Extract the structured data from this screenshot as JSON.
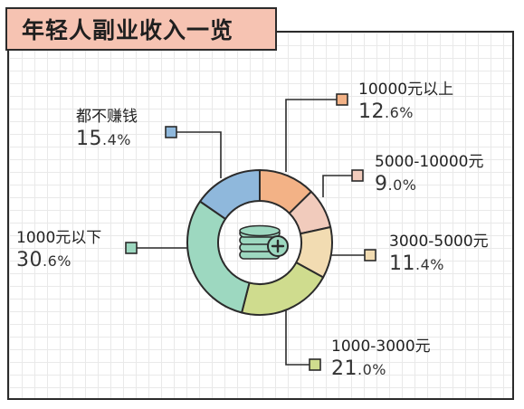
{
  "title": "年轻人副业收入一览",
  "chart_data": {
    "type": "pie",
    "title": "年轻人副业收入一览",
    "unit": "%",
    "slices": [
      {
        "label": "10000元以上",
        "value": 12.6,
        "int_part": "12",
        "dec_part": ".6%",
        "color": "#f3b286"
      },
      {
        "label": "5000-10000元",
        "value": 9.0,
        "int_part": "9",
        "dec_part": ".0%",
        "color": "#f1cbbc"
      },
      {
        "label": "3000-5000元",
        "value": 11.4,
        "int_part": "11",
        "dec_part": ".4%",
        "color": "#f2dcb2"
      },
      {
        "label": "1000-3000元",
        "value": 21.0,
        "int_part": "21",
        "dec_part": ".0%",
        "color": "#cfdc8e"
      },
      {
        "label": "1000元以下",
        "value": 30.6,
        "int_part": "30",
        "dec_part": ".6%",
        "color": "#9dd8c0"
      },
      {
        "label": "都不赚钱",
        "value": 15.4,
        "int_part": "15",
        "dec_part": ".4%",
        "color": "#8fb8dc"
      }
    ]
  }
}
